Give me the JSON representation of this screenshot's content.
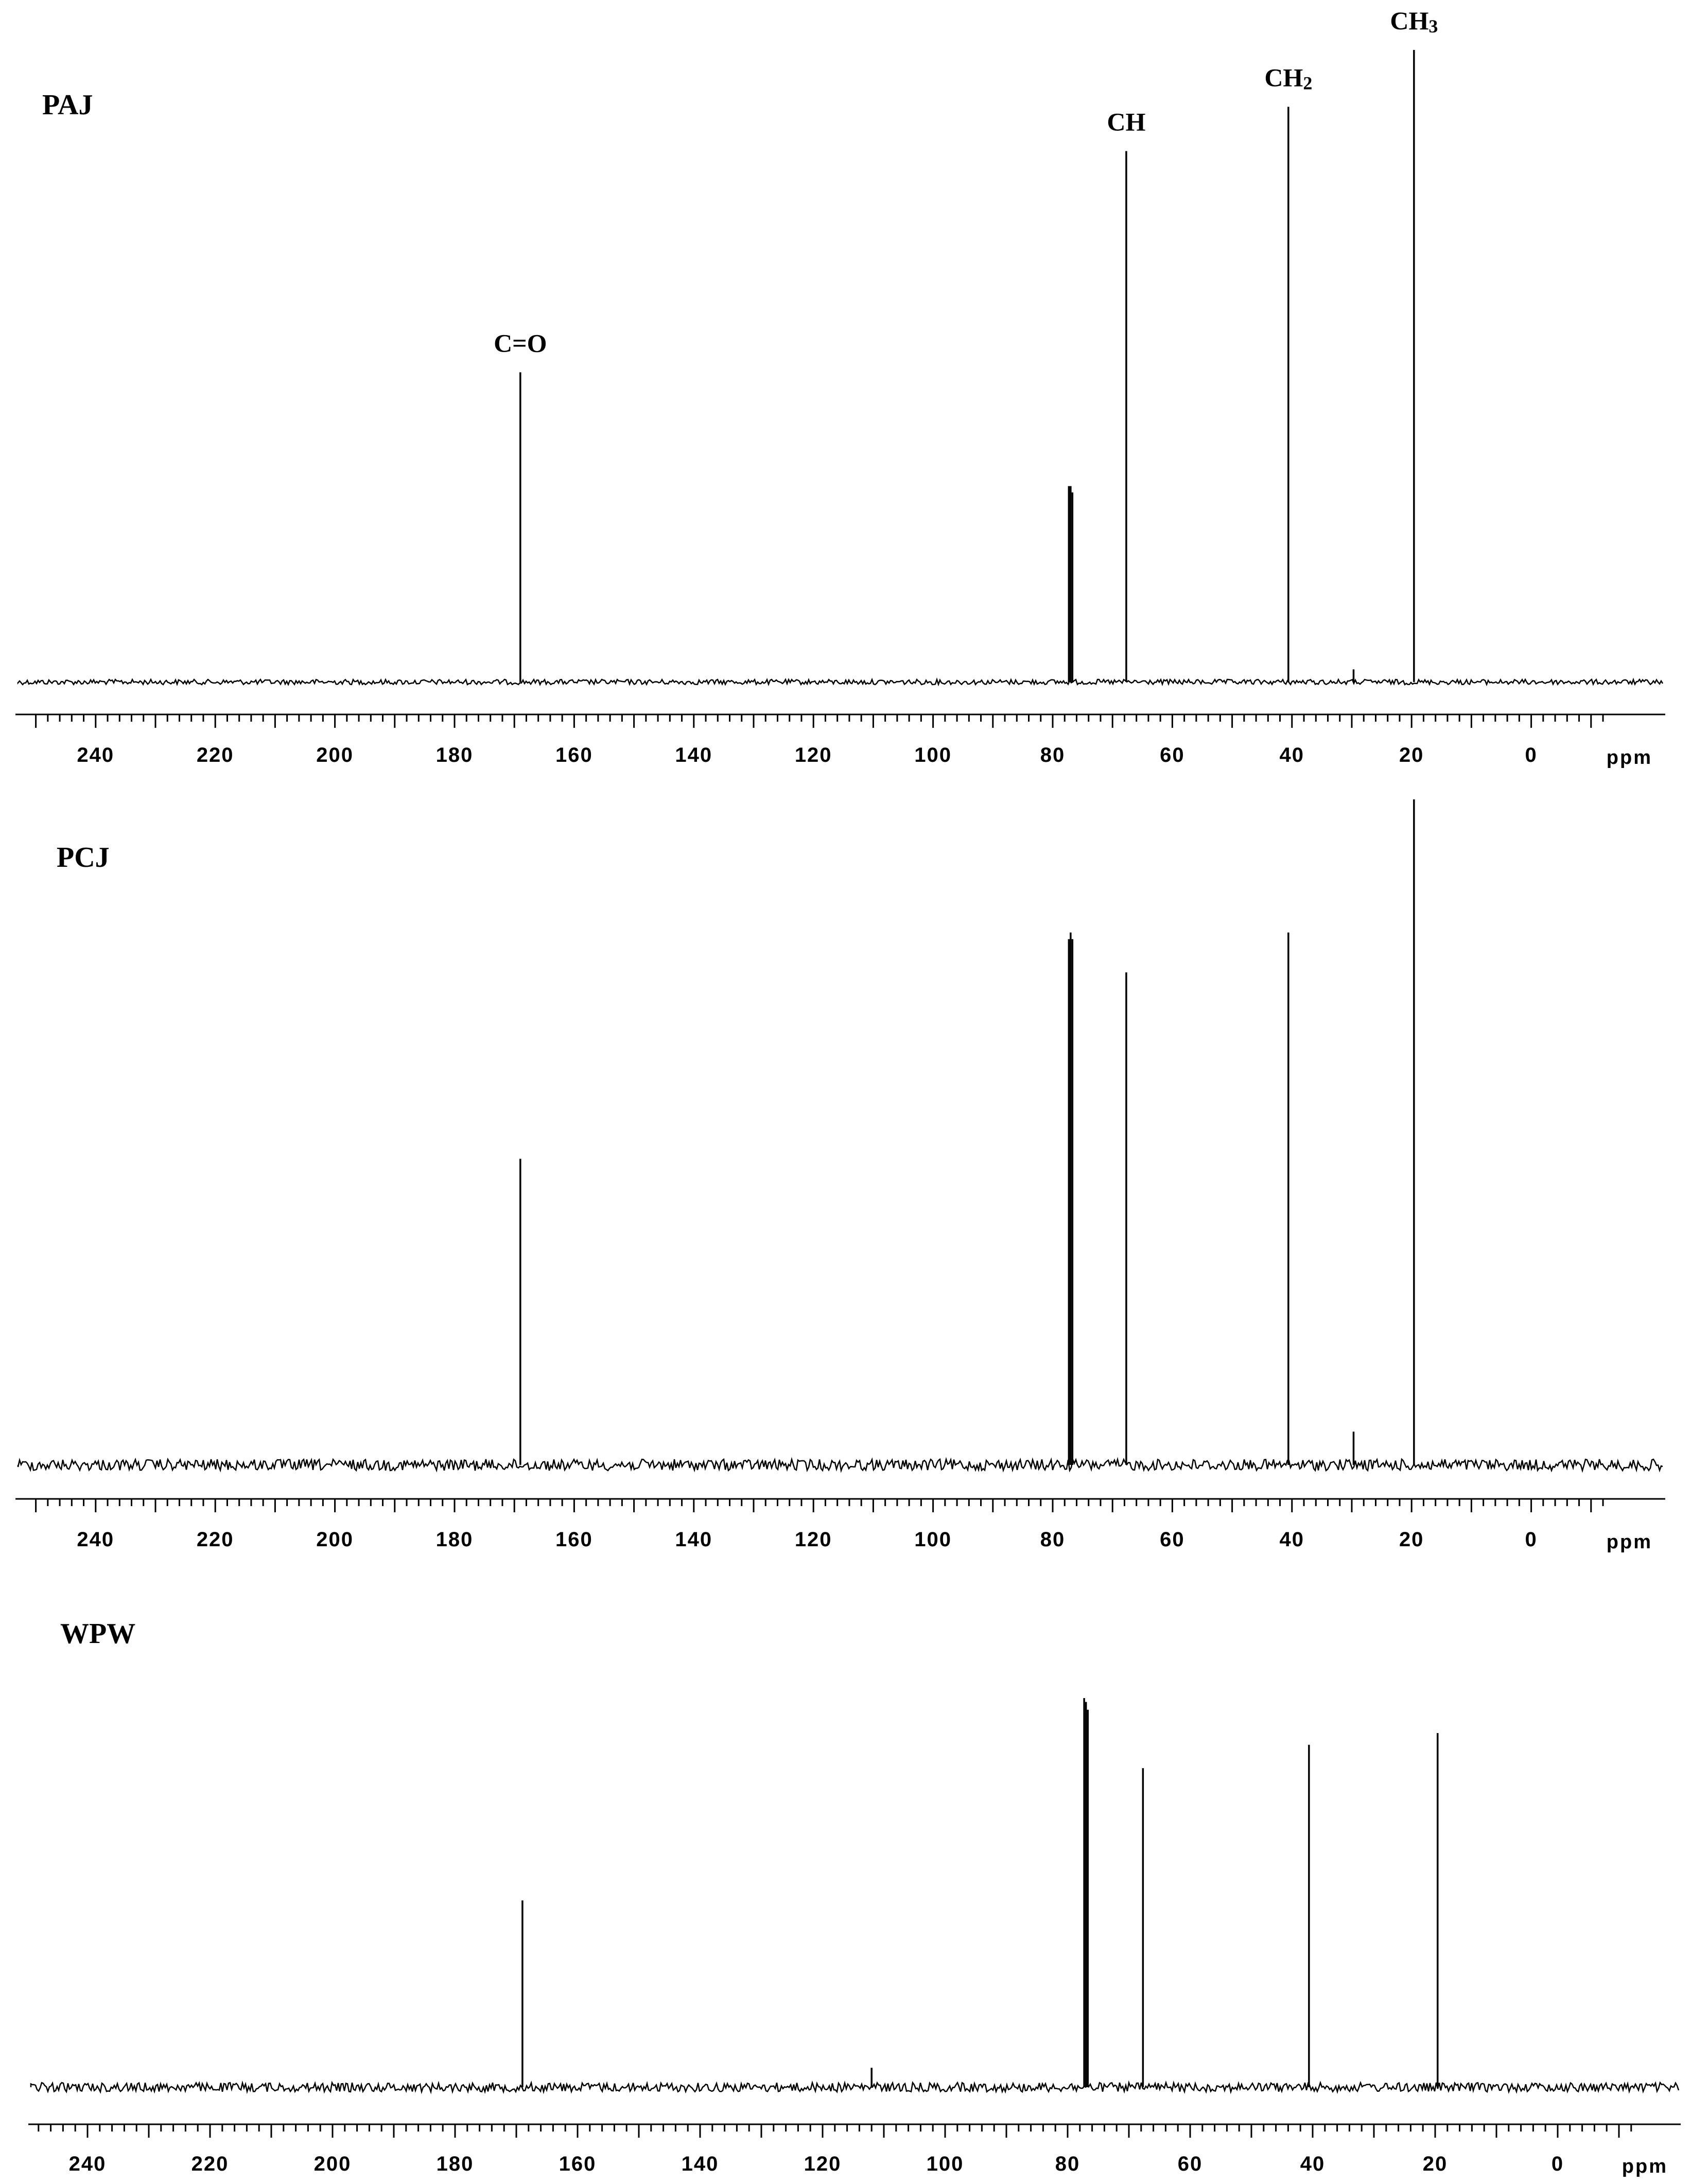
{
  "chart_data": [
    {
      "type": "line",
      "title": "PAJ",
      "xlabel": "ppm",
      "ylabel": "",
      "xlim": [
        250,
        -12
      ],
      "x_reversed": true,
      "ticks": [
        240,
        220,
        200,
        180,
        160,
        140,
        120,
        100,
        80,
        60,
        40,
        20,
        0
      ],
      "y_units": "relative intensity (tallest peak = 100)",
      "peaks": [
        {
          "ppm": 169.0,
          "intensity": 49,
          "label": "C=O"
        },
        {
          "ppm": 77.3,
          "intensity": 31
        },
        {
          "ppm": 77.0,
          "intensity": 31
        },
        {
          "ppm": 76.7,
          "intensity": 30
        },
        {
          "ppm": 67.7,
          "intensity": 84,
          "label": "CH"
        },
        {
          "ppm": 40.6,
          "intensity": 91,
          "label": "CH2"
        },
        {
          "ppm": 29.7,
          "intensity": 2
        },
        {
          "ppm": 19.6,
          "intensity": 100,
          "label": "CH3"
        }
      ]
    },
    {
      "type": "line",
      "title": "PCJ",
      "xlabel": "ppm",
      "ylabel": "",
      "xlim": [
        250,
        -12
      ],
      "x_reversed": true,
      "ticks": [
        240,
        220,
        200,
        180,
        160,
        140,
        120,
        100,
        80,
        60,
        40,
        20,
        0
      ],
      "y_units": "relative intensity (tallest peak = 100)",
      "peaks": [
        {
          "ppm": 169.0,
          "intensity": 46
        },
        {
          "ppm": 77.3,
          "intensity": 79
        },
        {
          "ppm": 77.0,
          "intensity": 80
        },
        {
          "ppm": 76.7,
          "intensity": 79
        },
        {
          "ppm": 67.7,
          "intensity": 74
        },
        {
          "ppm": 40.6,
          "intensity": 80
        },
        {
          "ppm": 29.7,
          "intensity": 5
        },
        {
          "ppm": 19.6,
          "intensity": 100
        }
      ]
    },
    {
      "type": "line",
      "title": "WPW",
      "xlabel": "ppm",
      "ylabel": "",
      "xlim": [
        250,
        -12
      ],
      "x_reversed": true,
      "ticks": [
        240,
        220,
        200,
        180,
        160,
        140,
        120,
        100,
        80,
        60,
        40,
        20,
        0
      ],
      "y_units": "relative intensity (tallest peak = 100)",
      "peaks": [
        {
          "ppm": 169.0,
          "intensity": 48
        },
        {
          "ppm": 112.0,
          "intensity": 5
        },
        {
          "ppm": 77.3,
          "intensity": 100
        },
        {
          "ppm": 77.0,
          "intensity": 99
        },
        {
          "ppm": 76.7,
          "intensity": 97
        },
        {
          "ppm": 67.7,
          "intensity": 82
        },
        {
          "ppm": 40.6,
          "intensity": 88
        },
        {
          "ppm": 19.6,
          "intensity": 91
        }
      ]
    }
  ]
}
